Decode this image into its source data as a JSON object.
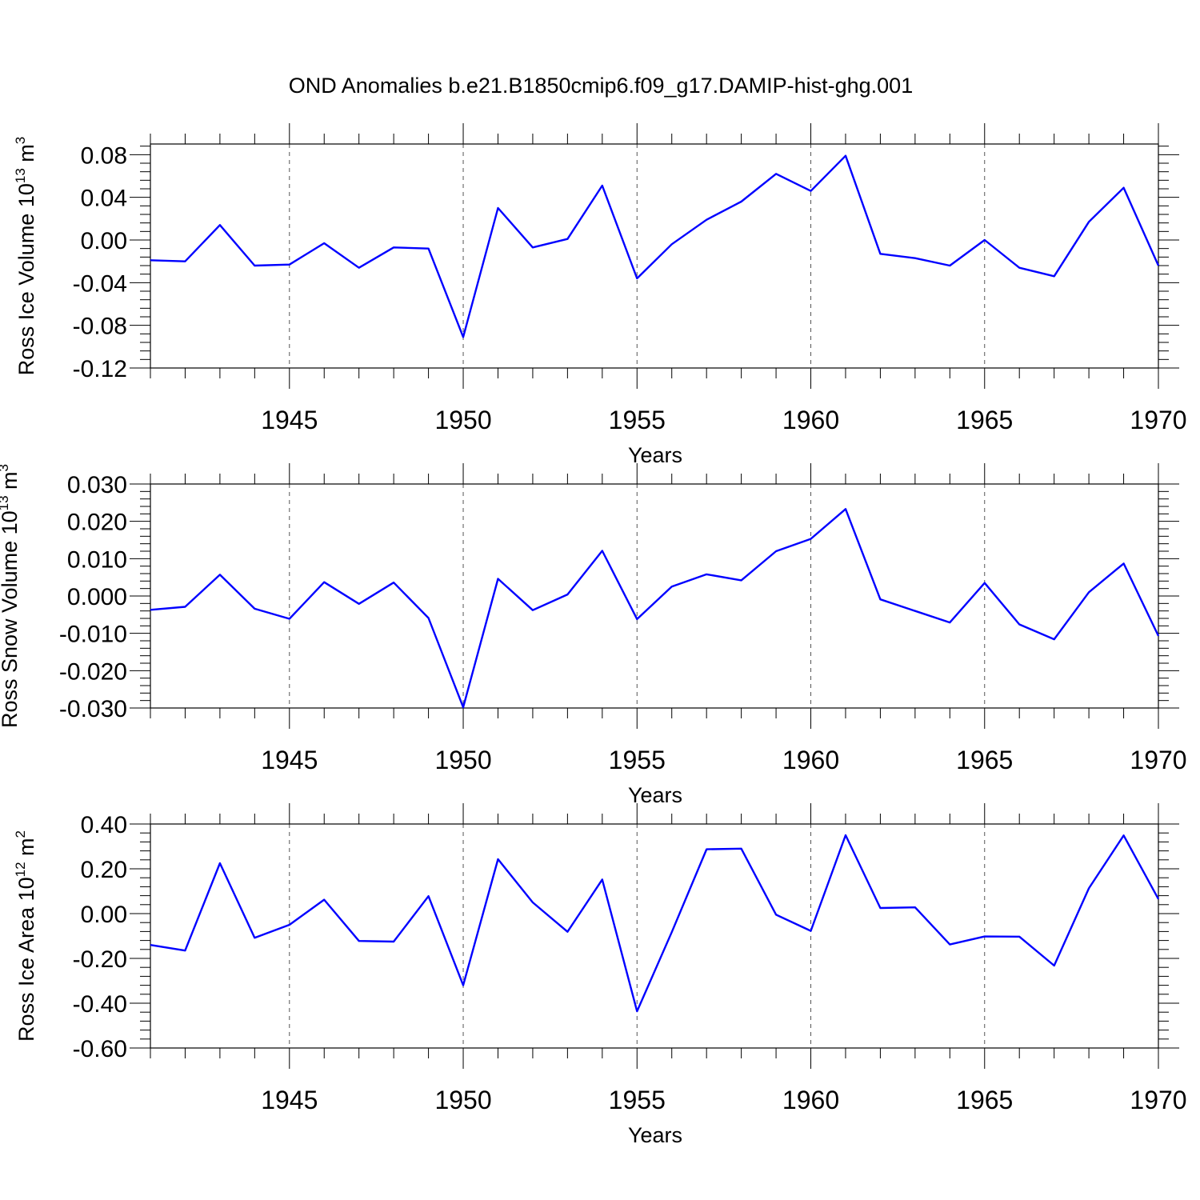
{
  "figure_title": "OND Anomalies b.e21.B1850cmip6.f09_g17.DAMIP-hist-ghg.001",
  "colors": {
    "line": "#0000ff",
    "axes": "#000000",
    "grid": "#555555"
  },
  "chart_data": [
    {
      "type": "line",
      "ylabel_main": "Ross Ice Volume 10",
      "ylabel_exp": "13",
      "ylabel_unit": " m",
      "ylabel_unit_exp": "3",
      "xlabel": "Years",
      "xlim": [
        1941,
        1970
      ],
      "ylim": [
        -0.12,
        0.09
      ],
      "yticks": [
        -0.12,
        -0.08,
        -0.04,
        0.0,
        0.04,
        0.08
      ],
      "ytick_labels": [
        "-0.12",
        "-0.08",
        "-0.04",
        "0.00",
        "0.04",
        "0.08"
      ],
      "xticks": [
        1945,
        1950,
        1955,
        1960,
        1965,
        1970
      ],
      "xtick_labels": [
        "1945",
        "1950",
        "1955",
        "1960",
        "1965",
        "1970"
      ],
      "grid_x": true,
      "x": [
        1941,
        1942,
        1943,
        1944,
        1945,
        1946,
        1947,
        1948,
        1949,
        1950,
        1951,
        1952,
        1953,
        1954,
        1955,
        1956,
        1957,
        1958,
        1959,
        1960,
        1961,
        1962,
        1963,
        1964,
        1965,
        1966,
        1967,
        1968,
        1969,
        1970
      ],
      "values": [
        -0.019,
        -0.02,
        0.014,
        -0.024,
        -0.023,
        -0.003,
        -0.026,
        -0.007,
        -0.008,
        -0.091,
        0.03,
        -0.007,
        0.001,
        0.051,
        -0.036,
        -0.004,
        0.019,
        0.036,
        0.062,
        0.046,
        0.079,
        -0.013,
        -0.017,
        -0.024,
        0.0,
        -0.026,
        -0.034,
        0.017,
        0.049,
        -0.024
      ]
    },
    {
      "type": "line",
      "ylabel_main": "Ross Snow Volume 10",
      "ylabel_exp": "13",
      "ylabel_unit": " m",
      "ylabel_unit_exp": "3",
      "xlabel": "Years",
      "xlim": [
        1941,
        1970
      ],
      "ylim": [
        -0.03,
        0.03
      ],
      "yticks": [
        -0.03,
        -0.02,
        -0.01,
        0.0,
        0.01,
        0.02,
        0.03
      ],
      "ytick_labels": [
        "-0.030",
        "-0.020",
        "-0.010",
        "0.000",
        "0.010",
        "0.020",
        "0.030"
      ],
      "xticks": [
        1945,
        1950,
        1955,
        1960,
        1965,
        1970
      ],
      "xtick_labels": [
        "1945",
        "1950",
        "1955",
        "1960",
        "1965",
        "1970"
      ],
      "grid_x": true,
      "x": [
        1941,
        1942,
        1943,
        1944,
        1945,
        1946,
        1947,
        1948,
        1949,
        1950,
        1951,
        1952,
        1953,
        1954,
        1955,
        1956,
        1957,
        1958,
        1959,
        1960,
        1961,
        1962,
        1963,
        1964,
        1965,
        1966,
        1967,
        1968,
        1969,
        1970
      ],
      "values": [
        -0.0037,
        -0.0029,
        0.0057,
        -0.0034,
        -0.0061,
        0.0037,
        -0.0021,
        0.0036,
        -0.0059,
        -0.0298,
        0.0046,
        -0.0038,
        0.0004,
        0.0121,
        -0.0062,
        0.0025,
        0.0058,
        0.0042,
        0.012,
        0.0153,
        0.0233,
        -0.0009,
        -0.004,
        -0.0071,
        0.0035,
        -0.0076,
        -0.0116,
        0.001,
        0.0087,
        -0.0107
      ]
    },
    {
      "type": "line",
      "ylabel_main": "Ross Ice Area 10",
      "ylabel_exp": "12",
      "ylabel_unit": " m",
      "ylabel_unit_exp": "2",
      "xlabel": "Years",
      "xlim": [
        1941,
        1970
      ],
      "ylim": [
        -0.6,
        0.4
      ],
      "yticks": [
        -0.6,
        -0.4,
        -0.2,
        0.0,
        0.2,
        0.4
      ],
      "ytick_labels": [
        "-0.60",
        "-0.40",
        "-0.20",
        "0.00",
        "0.20",
        "0.40"
      ],
      "xticks": [
        1945,
        1950,
        1955,
        1960,
        1965,
        1970
      ],
      "xtick_labels": [
        "1945",
        "1950",
        "1955",
        "1960",
        "1965",
        "1970"
      ],
      "grid_x": true,
      "x": [
        1941,
        1942,
        1943,
        1944,
        1945,
        1946,
        1947,
        1948,
        1949,
        1950,
        1951,
        1952,
        1953,
        1954,
        1955,
        1956,
        1957,
        1958,
        1959,
        1960,
        1961,
        1962,
        1963,
        1964,
        1965,
        1966,
        1967,
        1968,
        1969,
        1970
      ],
      "values": [
        -0.14,
        -0.165,
        0.225,
        -0.108,
        -0.05,
        0.062,
        -0.122,
        -0.125,
        0.078,
        -0.32,
        0.243,
        0.05,
        -0.081,
        0.152,
        -0.436,
        -0.083,
        0.287,
        0.29,
        -0.005,
        -0.077,
        0.35,
        0.025,
        0.028,
        -0.138,
        -0.102,
        -0.103,
        -0.232,
        0.113,
        0.349,
        0.065
      ]
    }
  ]
}
